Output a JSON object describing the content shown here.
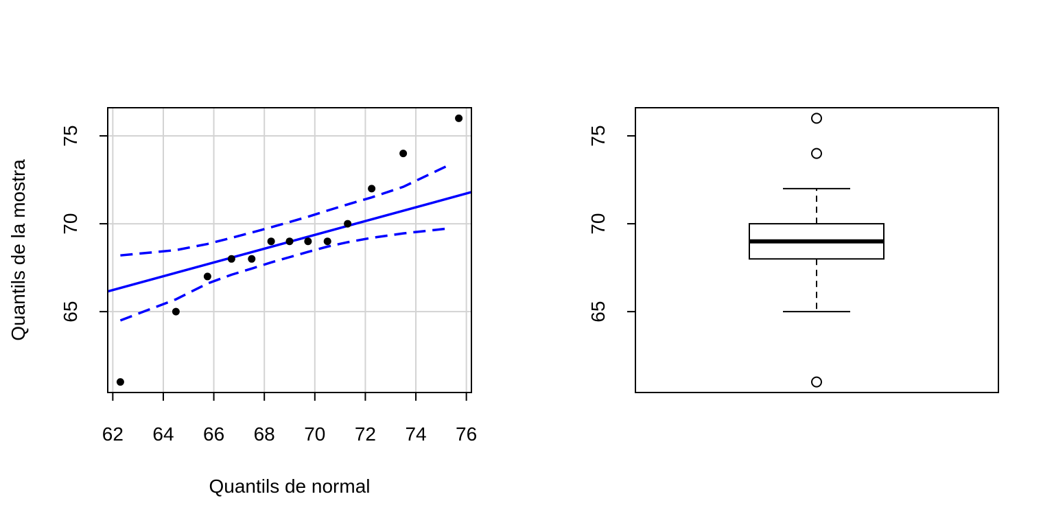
{
  "chart_data": [
    {
      "type": "scatter",
      "title": "",
      "xlabel": "Quantils de normal",
      "ylabel": "Quantils de la mostra",
      "xlim": [
        61.8,
        76.2
      ],
      "ylim": [
        60.4,
        76.6
      ],
      "x_ticks": [
        "62",
        "64",
        "66",
        "68",
        "70",
        "72",
        "74",
        "76"
      ],
      "y_ticks": [
        "65",
        "70",
        "75"
      ],
      "grid": true,
      "colors": {
        "points": "#000000",
        "reference_line": "#0000ff",
        "grid": "#d3d3d3"
      },
      "points": [
        {
          "x": 62.3,
          "y": 61
        },
        {
          "x": 64.5,
          "y": 65
        },
        {
          "x": 65.75,
          "y": 67
        },
        {
          "x": 66.7,
          "y": 68
        },
        {
          "x": 67.5,
          "y": 68
        },
        {
          "x": 68.27,
          "y": 69
        },
        {
          "x": 69.0,
          "y": 69
        },
        {
          "x": 69.73,
          "y": 69
        },
        {
          "x": 70.5,
          "y": 69
        },
        {
          "x": 71.3,
          "y": 70
        },
        {
          "x": 72.25,
          "y": 72
        },
        {
          "x": 73.5,
          "y": 74
        },
        {
          "x": 75.7,
          "y": 76
        }
      ],
      "reference_line": [
        {
          "x": 61.8,
          "y": 66.15
        },
        {
          "x": 76.2,
          "y": 71.8
        }
      ],
      "band_upper": [
        {
          "x": 62.3,
          "y": 68.2
        },
        {
          "x": 64.5,
          "y": 68.5
        },
        {
          "x": 65.75,
          "y": 68.85
        },
        {
          "x": 66.7,
          "y": 69.2
        },
        {
          "x": 67.5,
          "y": 69.5
        },
        {
          "x": 68.27,
          "y": 69.8
        },
        {
          "x": 69.0,
          "y": 70.1
        },
        {
          "x": 69.73,
          "y": 70.4
        },
        {
          "x": 70.5,
          "y": 70.75
        },
        {
          "x": 71.3,
          "y": 71.1
        },
        {
          "x": 72.25,
          "y": 71.5
        },
        {
          "x": 73.5,
          "y": 72.1
        },
        {
          "x": 75.4,
          "y": 73.4
        }
      ],
      "band_lower": [
        {
          "x": 62.3,
          "y": 64.5
        },
        {
          "x": 64.5,
          "y": 65.7
        },
        {
          "x": 65.75,
          "y": 66.6
        },
        {
          "x": 66.7,
          "y": 67.1
        },
        {
          "x": 67.5,
          "y": 67.45
        },
        {
          "x": 68.27,
          "y": 67.8
        },
        {
          "x": 69.0,
          "y": 68.1
        },
        {
          "x": 69.73,
          "y": 68.4
        },
        {
          "x": 70.5,
          "y": 68.7
        },
        {
          "x": 71.3,
          "y": 68.95
        },
        {
          "x": 72.25,
          "y": 69.2
        },
        {
          "x": 73.5,
          "y": 69.45
        },
        {
          "x": 75.4,
          "y": 69.75
        }
      ]
    },
    {
      "type": "box",
      "title": "",
      "xlabel": "",
      "ylabel": "",
      "ylim": [
        60.4,
        76.6
      ],
      "y_ticks": [
        "65",
        "70",
        "75"
      ],
      "box": {
        "whisker_low": 65,
        "q1": 68,
        "median": 69,
        "q3": 70,
        "whisker_high": 72
      },
      "outliers": [
        61,
        74,
        76
      ]
    }
  ]
}
